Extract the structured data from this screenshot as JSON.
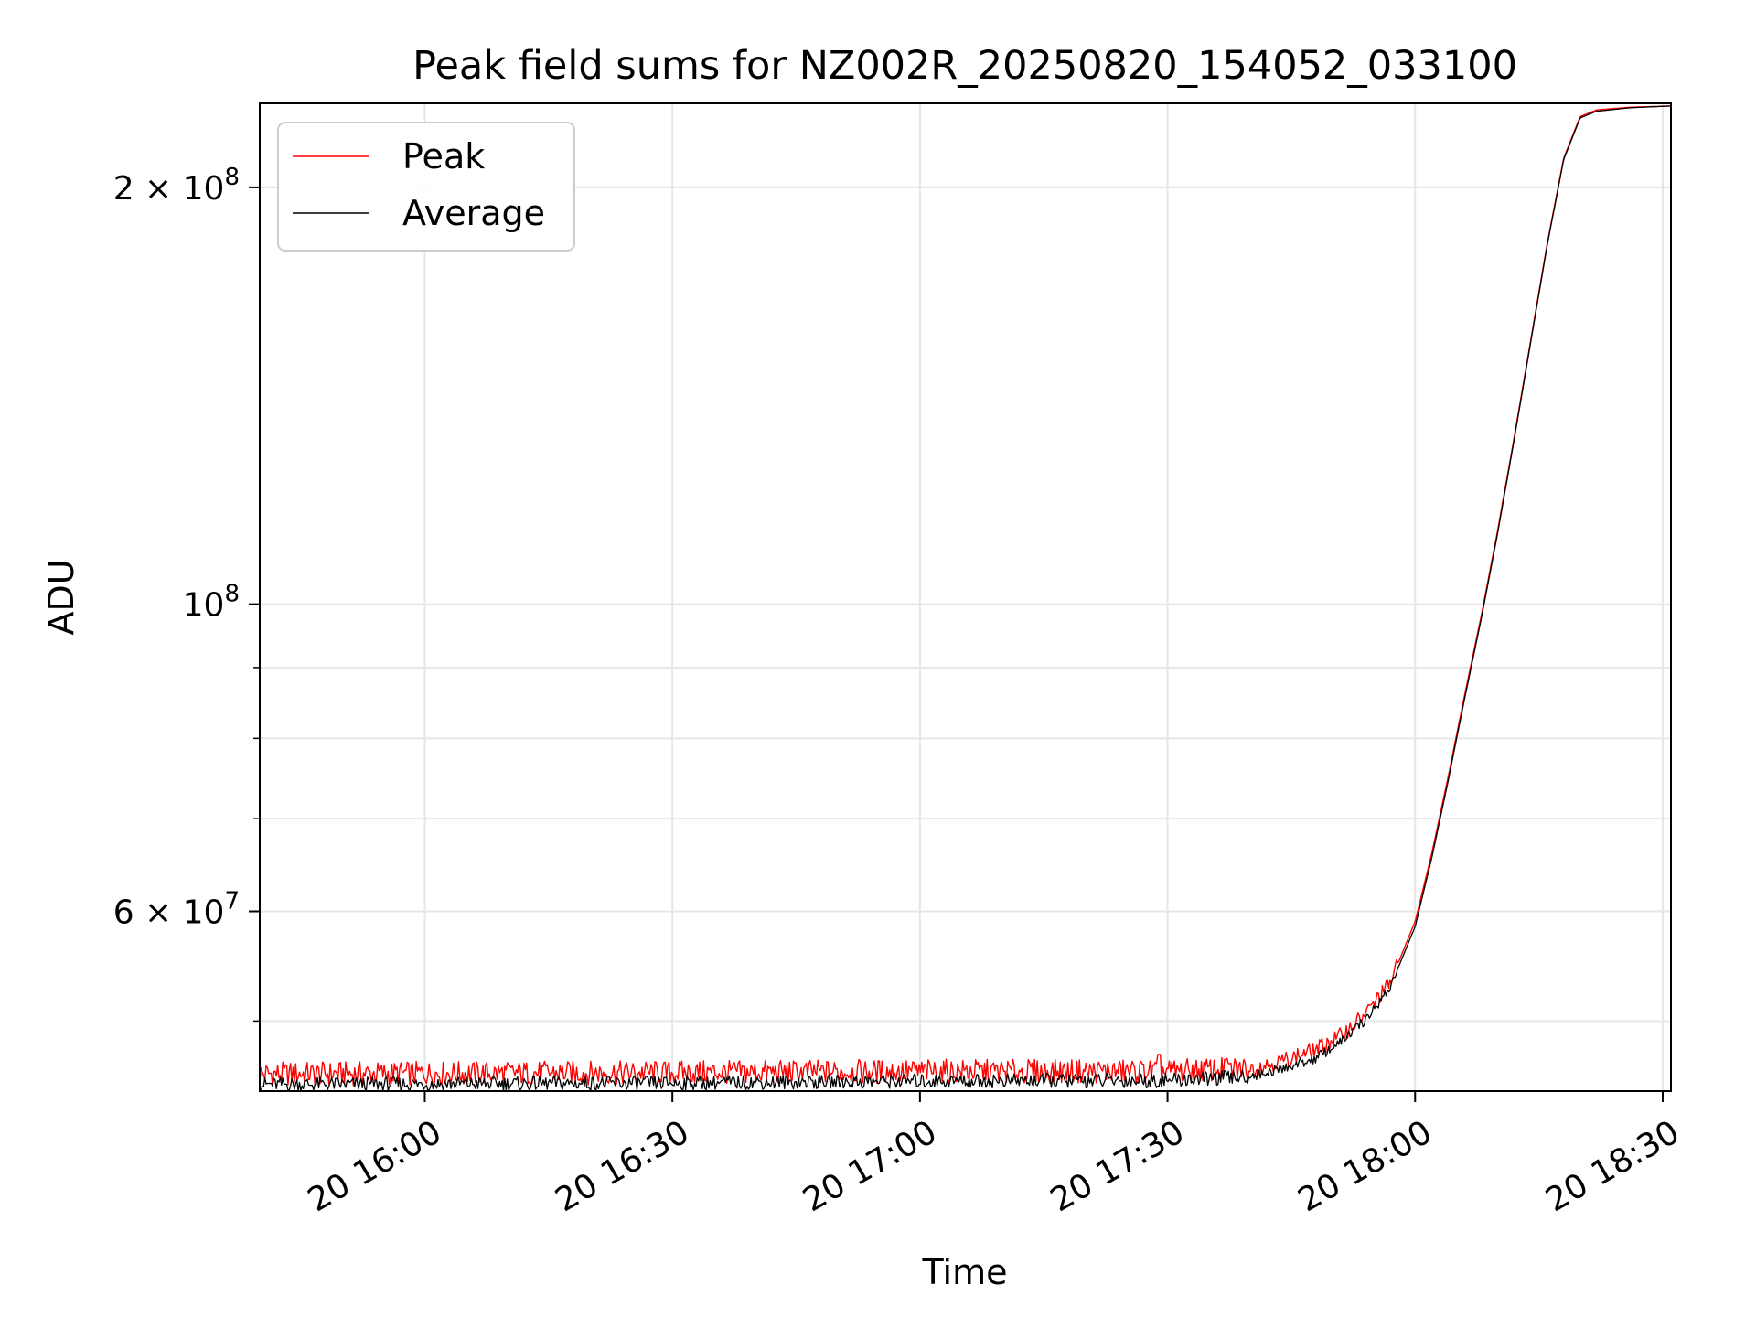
{
  "chart_data": {
    "type": "line",
    "title": "Peak field sums for NZ002R_20250820_154052_033100",
    "xlabel": "Time",
    "ylabel": "ADU",
    "x_axis": {
      "kind": "time",
      "range": [
        "2025-08-20 15:40",
        "2025-08-20 18:31"
      ],
      "ticks": [
        {
          "value": "2025-08-20 16:00",
          "label": "20 16:00"
        },
        {
          "value": "2025-08-20 16:30",
          "label": "20 16:30"
        },
        {
          "value": "2025-08-20 17:00",
          "label": "20 17:00"
        },
        {
          "value": "2025-08-20 17:30",
          "label": "20 17:30"
        },
        {
          "value": "2025-08-20 18:00",
          "label": "20 18:00"
        },
        {
          "value": "2025-08-20 18:30",
          "label": "20 18:30"
        }
      ]
    },
    "y_axis": {
      "scale": "log",
      "range": [
        44500000,
        230000000
      ],
      "major_ticks": [
        {
          "value": 60000000,
          "base": "6",
          "exp": "7"
        },
        {
          "value": 100000000,
          "base": "",
          "exp": "8"
        },
        {
          "value": 200000000,
          "base": "2",
          "exp": "8"
        }
      ],
      "minor_ticks": [
        50000000,
        60000000,
        70000000,
        80000000,
        90000000,
        200000000
      ]
    },
    "grid": true,
    "legend": {
      "position": "upper-left"
    },
    "series": [
      {
        "name": "Peak",
        "color": "#ff0000",
        "baseline": [
          [
            "2025-08-20 15:40",
            45800000
          ],
          [
            "2025-08-20 16:30",
            45900000
          ],
          [
            "2025-08-20 17:00",
            46000000
          ],
          [
            "2025-08-20 17:30",
            46000000
          ],
          [
            "2025-08-20 17:40",
            46200000
          ],
          [
            "2025-08-20 17:44",
            46800000
          ],
          [
            "2025-08-20 17:48",
            47700000
          ],
          [
            "2025-08-20 17:51",
            48800000
          ],
          [
            "2025-08-20 17:54",
            50600000
          ],
          [
            "2025-08-20 17:57",
            53300000
          ],
          [
            "2025-08-20 18:00",
            59000000
          ],
          [
            "2025-08-20 18:02",
            66000000
          ],
          [
            "2025-08-20 18:04",
            75000000
          ],
          [
            "2025-08-20 18:06",
            86000000
          ],
          [
            "2025-08-20 18:08",
            98000000
          ],
          [
            "2025-08-20 18:10",
            113000000
          ],
          [
            "2025-08-20 18:12",
            132000000
          ],
          [
            "2025-08-20 18:14",
            155000000
          ],
          [
            "2025-08-20 18:16",
            182000000
          ],
          [
            "2025-08-20 18:18",
            210000000
          ],
          [
            "2025-08-20 18:20",
            225000000
          ],
          [
            "2025-08-20 18:22",
            227500000
          ],
          [
            "2025-08-20 18:26",
            228500000
          ],
          [
            "2025-08-20 18:31",
            229000000
          ]
        ],
        "spikes": [
          [
            "2025-08-20 17:29",
            47300000
          ],
          [
            "2025-08-20 17:37",
            46900000
          ]
        ]
      },
      {
        "name": "Average",
        "color": "#000000",
        "baseline": [
          [
            "2025-08-20 15:40",
            45000000
          ],
          [
            "2025-08-20 16:30",
            45100000
          ],
          [
            "2025-08-20 17:00",
            45250000
          ],
          [
            "2025-08-20 17:30",
            45300000
          ],
          [
            "2025-08-20 17:40",
            45600000
          ],
          [
            "2025-08-20 17:44",
            46200000
          ],
          [
            "2025-08-20 17:48",
            47000000
          ],
          [
            "2025-08-20 17:51",
            48300000
          ],
          [
            "2025-08-20 17:54",
            50100000
          ],
          [
            "2025-08-20 17:57",
            52900000
          ],
          [
            "2025-08-20 18:00",
            58500000
          ],
          [
            "2025-08-20 18:02",
            65500000
          ],
          [
            "2025-08-20 18:04",
            74500000
          ],
          [
            "2025-08-20 18:06",
            85500000
          ],
          [
            "2025-08-20 18:08",
            97500000
          ],
          [
            "2025-08-20 18:10",
            112500000
          ],
          [
            "2025-08-20 18:12",
            131500000
          ],
          [
            "2025-08-20 18:14",
            154500000
          ],
          [
            "2025-08-20 18:16",
            181500000
          ],
          [
            "2025-08-20 18:18",
            209500000
          ],
          [
            "2025-08-20 18:20",
            224500000
          ],
          [
            "2025-08-20 18:22",
            227000000
          ],
          [
            "2025-08-20 18:26",
            228300000
          ],
          [
            "2025-08-20 18:31",
            229000000
          ]
        ],
        "spikes": []
      }
    ]
  }
}
